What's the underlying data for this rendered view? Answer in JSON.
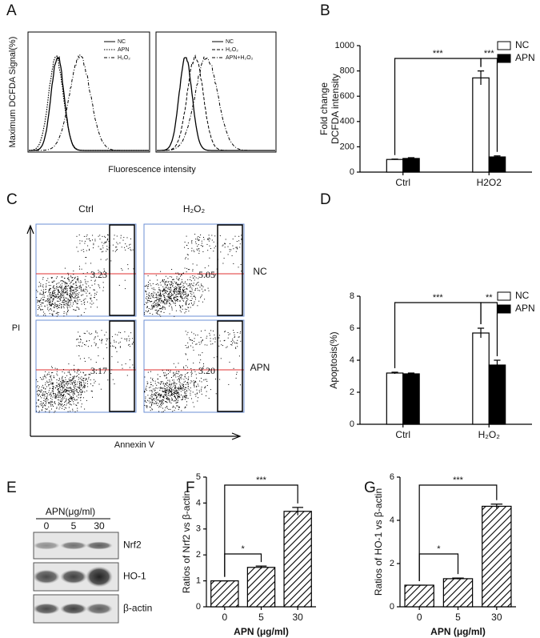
{
  "panels": [
    "A",
    "B",
    "C",
    "D",
    "E",
    "F",
    "G"
  ],
  "panel_a": {
    "ylabel": "Maximum DCFDA Signal(%)",
    "xlabel": "Fluorescence intensity",
    "legend_left": [
      "NC",
      "APN",
      "H₂O₂"
    ],
    "legend_right": [
      "NC",
      "H₂O₂",
      "APN+H₂O₂"
    ]
  },
  "panel_c": {
    "columns": [
      "Ctrl",
      "H₂O₂"
    ],
    "rows": [
      "NC",
      "APN"
    ],
    "ylabel": "PI",
    "xlabel": "Annexin V",
    "percentages": [
      [
        "3.23",
        "5.05"
      ],
      [
        "3.17",
        "3.20"
      ]
    ]
  },
  "panel_e": {
    "title": "APN(μg/ml)",
    "lanes": [
      "0",
      "5",
      "30"
    ],
    "bands": [
      "Nrf2",
      "HO-1",
      "β-actin"
    ]
  },
  "chart_data": [
    {
      "type": "bar",
      "ylabel": [
        "Fold change",
        "DCFDA intensity"
      ],
      "categories": [
        "Ctrl",
        "H2O2"
      ],
      "series": [
        {
          "name": "NC",
          "color": "#ffffff",
          "values": [
            100,
            745
          ],
          "errors": [
            3,
            55
          ]
        },
        {
          "name": "APN",
          "color": "#000000",
          "values": [
            108,
            120
          ],
          "errors": [
            6,
            8
          ]
        }
      ],
      "ylim": [
        0,
        1000
      ],
      "yticks": [
        0,
        200,
        400,
        600,
        800,
        1000
      ],
      "annotations": [
        "***",
        "***"
      ],
      "legend": "upper right"
    },
    {
      "type": "bar",
      "ylabel": [
        "Apoptosis(%)"
      ],
      "categories": [
        "Ctrl",
        "H₂O₂"
      ],
      "series": [
        {
          "name": "NC",
          "color": "#ffffff",
          "values": [
            3.2,
            5.7
          ],
          "errors": [
            0.05,
            0.3
          ]
        },
        {
          "name": "APN",
          "color": "#000000",
          "values": [
            3.15,
            3.7
          ],
          "errors": [
            0.05,
            0.3
          ]
        }
      ],
      "ylim": [
        0,
        8
      ],
      "yticks": [
        0,
        2,
        4,
        6,
        8
      ],
      "annotations": [
        "***",
        "**"
      ],
      "legend": "upper right"
    },
    {
      "type": "bar",
      "ylabel": [
        "Ratios of Nrf2 vs β-actin"
      ],
      "xlabel": "APN (μg/ml)",
      "categories": [
        "0",
        "5",
        "30"
      ],
      "series": [
        {
          "color": "#ffffff",
          "hatch": true,
          "values": [
            1,
            1.52,
            3.68
          ],
          "errors": [
            0,
            0.05,
            0.15
          ]
        }
      ],
      "ylim": [
        0,
        5
      ],
      "yticks": [
        0,
        1,
        2,
        3,
        4,
        5
      ],
      "annotations": [
        "*",
        "***"
      ]
    },
    {
      "type": "bar",
      "ylabel": [
        "Ratios of HO-1 vs β-actin"
      ],
      "xlabel": "APN (μg/ml)",
      "categories": [
        "0",
        "5",
        "30"
      ],
      "series": [
        {
          "color": "#ffffff",
          "hatch": true,
          "values": [
            1,
            1.3,
            4.65
          ],
          "errors": [
            0,
            0.03,
            0.1
          ]
        }
      ],
      "ylim": [
        0,
        6
      ],
      "yticks": [
        0,
        2,
        4,
        6
      ],
      "annotations": [
        "*",
        "***"
      ]
    }
  ]
}
